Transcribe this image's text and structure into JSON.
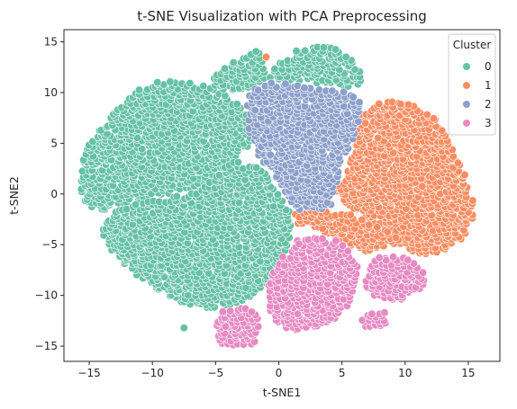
{
  "chart_data": {
    "type": "scatter",
    "title": "t-SNE Visualization with PCA Preprocessing",
    "xlabel": "t-SNE1",
    "ylabel": "t-SNE2",
    "xlim": [
      -17,
      17.5
    ],
    "ylim": [
      -16.5,
      16.2
    ],
    "xticks": [
      -15,
      -10,
      -5,
      0,
      5,
      10,
      15
    ],
    "yticks": [
      -15,
      -10,
      -5,
      0,
      5,
      10,
      15
    ],
    "grid": false,
    "legend": {
      "title": "Cluster",
      "placement": "top-right",
      "entries": [
        {
          "label": "0",
          "color": "#66c2a5"
        },
        {
          "label": "1",
          "color": "#fc8d62"
        },
        {
          "label": "2",
          "color": "#8da0cb"
        },
        {
          "label": "3",
          "color": "#e78ac3"
        }
      ]
    },
    "series": [
      {
        "cluster": "0",
        "color": "#66c2a5",
        "regions": [
          {
            "polygon": [
              [
                -15.5,
                3.2
              ],
              [
                -15.0,
                5.2
              ],
              [
                -13.8,
                6.8
              ],
              [
                -13.0,
                8.0
              ],
              [
                -11.8,
                9.6
              ],
              [
                -10.5,
                10.8
              ],
              [
                -9.0,
                11.2
              ],
              [
                -7.0,
                11.0
              ],
              [
                -5.5,
                10.5
              ],
              [
                -3.8,
                9.6
              ],
              [
                -2.5,
                8.2
              ],
              [
                -2.0,
                6.5
              ],
              [
                -2.5,
                4.5
              ],
              [
                -4.0,
                3.0
              ],
              [
                -5.5,
                1.5
              ],
              [
                -6.5,
                0.5
              ],
              [
                -8.0,
                0.2
              ],
              [
                -10.0,
                -0.2
              ],
              [
                -12.0,
                -1.0
              ],
              [
                -14.0,
                -1.6
              ],
              [
                -15.3,
                -1.2
              ],
              [
                -15.7,
                0.5
              ]
            ]
          },
          {
            "polygon": [
              [
                -14.2,
                -3.5
              ],
              [
                -13.0,
                -1.8
              ],
              [
                -11.0,
                -0.8
              ],
              [
                -8.5,
                -0.3
              ],
              [
                -6.2,
                0.3
              ],
              [
                -5.0,
                2.0
              ],
              [
                -4.2,
                3.0
              ],
              [
                -3.0,
                3.2
              ],
              [
                -1.5,
                2.5
              ],
              [
                -0.2,
                1.0
              ],
              [
                0.9,
                -1.5
              ],
              [
                1.0,
                -3.5
              ],
              [
                0.5,
                -6.0
              ],
              [
                -0.3,
                -8.5
              ],
              [
                -1.8,
                -10.0
              ],
              [
                -3.5,
                -10.8
              ],
              [
                -5.5,
                -11.3
              ],
              [
                -7.5,
                -11.0
              ],
              [
                -9.5,
                -9.5
              ],
              [
                -11.5,
                -7.8
              ],
              [
                -13.2,
                -6.0
              ]
            ]
          },
          {
            "polygon": [
              [
                -5.5,
                11.2
              ],
              [
                -4.0,
                12.8
              ],
              [
                -2.5,
                13.6
              ],
              [
                -1.6,
                14.4
              ],
              [
                -1.2,
                13.0
              ],
              [
                -1.0,
                11.5
              ],
              [
                -1.8,
                10.6
              ],
              [
                -3.5,
                10.2
              ],
              [
                -5.0,
                10.4
              ]
            ]
          },
          {
            "polygon": [
              [
                -0.8,
                11.5
              ],
              [
                0.0,
                13.0
              ],
              [
                1.5,
                14.2
              ],
              [
                3.0,
                14.7
              ],
              [
                4.5,
                14.5
              ],
              [
                5.5,
                13.6
              ],
              [
                6.4,
                12.5
              ],
              [
                6.6,
                10.9
              ],
              [
                5.5,
                10.6
              ],
              [
                3.5,
                10.8
              ],
              [
                1.5,
                11.2
              ],
              [
                0.0,
                11.3
              ]
            ]
          }
        ],
        "points": [
          [
            -7.5,
            -13.2
          ]
        ]
      },
      {
        "cluster": "1",
        "color": "#fc8d62",
        "regions": [
          {
            "polygon": [
              [
                6.0,
                7.5
              ],
              [
                7.5,
                8.8
              ],
              [
                9.0,
                9.2
              ],
              [
                10.5,
                9.0
              ],
              [
                12.0,
                8.0
              ],
              [
                13.3,
                6.2
              ],
              [
                14.2,
                3.5
              ],
              [
                15.2,
                0.8
              ],
              [
                15.5,
                -1.5
              ],
              [
                15.2,
                -3.5
              ],
              [
                14.0,
                -5.0
              ],
              [
                12.5,
                -5.8
              ],
              [
                11.0,
                -6.0
              ],
              [
                9.5,
                -5.0
              ],
              [
                8.0,
                -3.5
              ],
              [
                6.5,
                -2.0
              ],
              [
                5.0,
                -1.2
              ],
              [
                4.5,
                0.5
              ],
              [
                5.5,
                2.5
              ],
              [
                6.0,
                4.5
              ],
              [
                5.8,
                6.0
              ]
            ]
          },
          {
            "polygon": [
              [
                1.2,
                -2.0
              ],
              [
                2.5,
                -1.5
              ],
              [
                4.0,
                -1.8
              ],
              [
                5.5,
                -2.0
              ],
              [
                7.0,
                -2.5
              ],
              [
                8.5,
                -3.5
              ],
              [
                9.6,
                -4.6
              ],
              [
                8.5,
                -5.3
              ],
              [
                7.0,
                -5.8
              ],
              [
                5.5,
                -5.0
              ],
              [
                4.0,
                -4.0
              ],
              [
                2.5,
                -3.2
              ],
              [
                1.5,
                -3.0
              ]
            ]
          }
        ],
        "points": [
          [
            -1.0,
            13.5
          ]
        ]
      },
      {
        "cluster": "2",
        "color": "#8da0cb",
        "regions": [
          {
            "polygon": [
              [
                -2.5,
                9.5
              ],
              [
                -1.8,
                10.5
              ],
              [
                -0.5,
                11.0
              ],
              [
                1.5,
                10.8
              ],
              [
                3.5,
                10.4
              ],
              [
                5.5,
                10.0
              ],
              [
                6.5,
                9.0
              ],
              [
                6.3,
                6.5
              ],
              [
                5.5,
                4.5
              ],
              [
                4.8,
                2.5
              ],
              [
                4.5,
                0.5
              ],
              [
                4.2,
                -1.0
              ],
              [
                3.0,
                -1.8
              ],
              [
                1.5,
                -1.5
              ],
              [
                0.5,
                0.0
              ],
              [
                -0.5,
                2.0
              ],
              [
                -1.5,
                3.5
              ],
              [
                -2.3,
                5.5
              ],
              [
                -2.6,
                7.5
              ]
            ]
          }
        ],
        "points": []
      },
      {
        "cluster": "3",
        "color": "#e78ac3",
        "regions": [
          {
            "polygon": [
              [
                -0.8,
                -8.5
              ],
              [
                0.0,
                -6.5
              ],
              [
                1.5,
                -4.5
              ],
              [
                3.0,
                -4.0
              ],
              [
                4.5,
                -4.5
              ],
              [
                5.5,
                -5.5
              ],
              [
                6.3,
                -7.0
              ],
              [
                6.0,
                -9.5
              ],
              [
                5.3,
                -11.5
              ],
              [
                4.0,
                -12.8
              ],
              [
                2.0,
                -13.5
              ],
              [
                0.0,
                -13.2
              ],
              [
                -0.8,
                -11.5
              ]
            ]
          },
          {
            "polygon": [
              [
                6.8,
                -7.5
              ],
              [
                7.8,
                -6.3
              ],
              [
                9.0,
                -6.0
              ],
              [
                10.5,
                -6.5
              ],
              [
                11.5,
                -7.5
              ],
              [
                11.8,
                -8.8
              ],
              [
                10.8,
                -9.8
              ],
              [
                9.5,
                -10.5
              ],
              [
                8.0,
                -10.5
              ],
              [
                7.0,
                -9.5
              ]
            ]
          },
          {
            "polygon": [
              [
                -4.8,
                -11.6
              ],
              [
                -3.0,
                -11.2
              ],
              [
                -1.7,
                -11.5
              ],
              [
                -1.5,
                -13.5
              ],
              [
                -2.0,
                -15.0
              ],
              [
                -3.5,
                -15.1
              ],
              [
                -4.8,
                -14.8
              ],
              [
                -5.0,
                -13.0
              ]
            ]
          },
          {
            "polygon": [
              [
                6.5,
                -12.0
              ],
              [
                7.5,
                -11.7
              ],
              [
                8.7,
                -11.5
              ],
              [
                8.6,
                -12.5
              ],
              [
                8.0,
                -13.3
              ],
              [
                7.0,
                -13.5
              ],
              [
                6.6,
                -13.0
              ]
            ]
          }
        ],
        "points": []
      }
    ]
  }
}
